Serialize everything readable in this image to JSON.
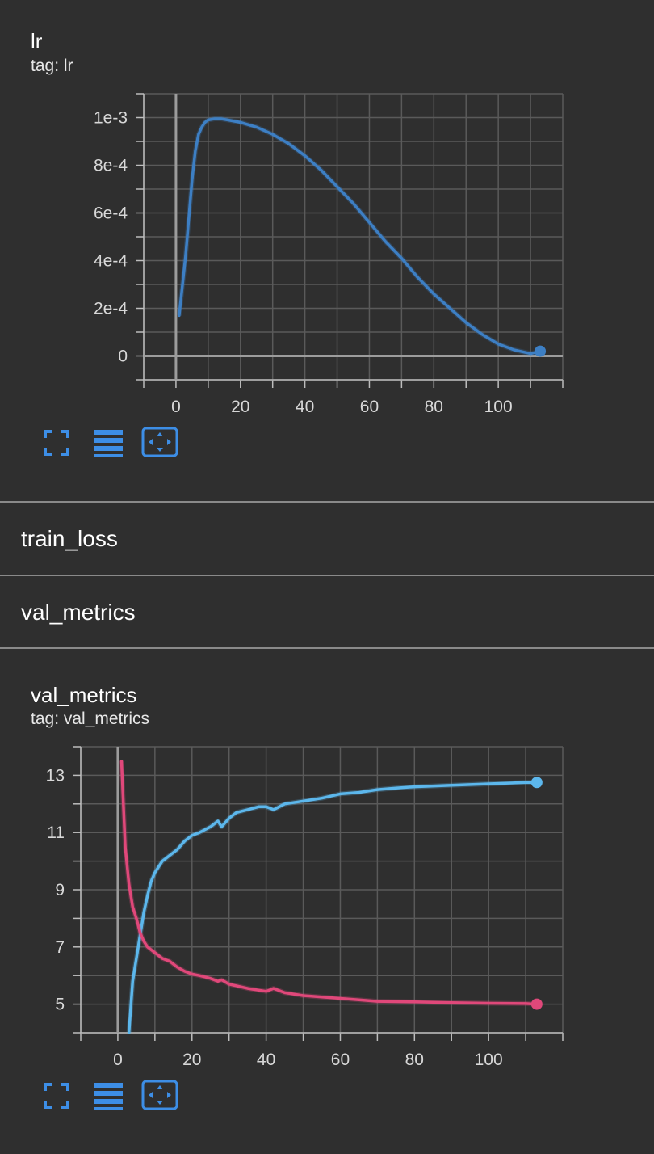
{
  "cards": [
    {
      "title": "lr",
      "tag": "tag: lr"
    },
    {
      "title": "val_metrics",
      "tag": "tag: val_metrics"
    }
  ],
  "sections": [
    "train_loss",
    "val_metrics"
  ],
  "toolbar": {
    "icons": [
      "fullscreen-icon",
      "legend-list-icon",
      "fit-domain-icon"
    ]
  },
  "colors": {
    "background": "#2f2f2f",
    "accent": "#3d8ee6",
    "lr_series": "#3d7fc4",
    "blue_series": "#5cb7ec",
    "pink_series": "#e0487a"
  },
  "chart_data": [
    {
      "type": "line",
      "title": "lr",
      "xlabel": "",
      "ylabel": "",
      "xlim": [
        -10,
        120
      ],
      "ylim": [
        -0.0001,
        0.0011
      ],
      "x_ticks": [
        0,
        20,
        40,
        60,
        80,
        100
      ],
      "x_tick_labels": [
        "0",
        "20",
        "40",
        "60",
        "80",
        "100"
      ],
      "y_ticks": [
        0,
        0.0002,
        0.0004,
        0.0006,
        0.0008,
        0.001
      ],
      "y_tick_labels": [
        "0",
        "2e-4",
        "4e-4",
        "6e-4",
        "8e-4",
        "1e-3"
      ],
      "grid": true,
      "series": [
        {
          "x": [
            1,
            3,
            5,
            6,
            7,
            8,
            9,
            10,
            12,
            14,
            16,
            20,
            25,
            30,
            35,
            40,
            45,
            50,
            55,
            60,
            65,
            70,
            75,
            80,
            85,
            90,
            95,
            100,
            105,
            110,
            113
          ],
          "y": [
            0.00017,
            0.00042,
            0.00074,
            0.00086,
            0.00093,
            0.00096,
            0.00098,
            0.00099,
            0.000995,
            0.000995,
            0.00099,
            0.00098,
            0.00096,
            0.00093,
            0.00089,
            0.00084,
            0.00078,
            0.00071,
            0.00064,
            0.00056,
            0.00048,
            0.00041,
            0.00033,
            0.00026,
            0.0002,
            0.00014,
            9e-05,
            5e-05,
            2.5e-05,
            1e-05,
            2e-05
          ]
        }
      ]
    },
    {
      "type": "line",
      "title": "val_metrics",
      "xlabel": "",
      "ylabel": "",
      "xlim": [
        -10,
        120
      ],
      "ylim": [
        4,
        14
      ],
      "x_ticks": [
        0,
        20,
        40,
        60,
        80,
        100
      ],
      "x_tick_labels": [
        "0",
        "20",
        "40",
        "60",
        "80",
        "100"
      ],
      "y_ticks": [
        5,
        7,
        9,
        11,
        13
      ],
      "y_tick_labels": [
        "5",
        "7",
        "9",
        "11",
        "13"
      ],
      "grid": true,
      "series": [
        {
          "x": [
            3,
            4,
            5,
            6,
            7,
            8,
            9,
            10,
            12,
            14,
            16,
            18,
            20,
            22,
            25,
            27,
            28,
            30,
            32,
            35,
            38,
            40,
            42,
            45,
            50,
            55,
            60,
            65,
            70,
            75,
            80,
            90,
            100,
            110,
            113
          ],
          "y": [
            4.0,
            5.8,
            6.6,
            7.4,
            8.2,
            8.8,
            9.3,
            9.6,
            10.0,
            10.2,
            10.4,
            10.7,
            10.9,
            11.0,
            11.2,
            11.4,
            11.2,
            11.5,
            11.7,
            11.8,
            11.9,
            11.9,
            11.8,
            12.0,
            12.1,
            12.2,
            12.35,
            12.4,
            12.5,
            12.55,
            12.6,
            12.65,
            12.7,
            12.75,
            12.75
          ]
        },
        {
          "x": [
            1,
            2,
            3,
            4,
            5,
            6,
            7,
            8,
            10,
            12,
            14,
            16,
            18,
            20,
            22,
            25,
            27,
            28,
            30,
            35,
            40,
            42,
            45,
            50,
            55,
            60,
            65,
            70,
            80,
            90,
            100,
            110,
            113
          ],
          "y": [
            13.5,
            10.5,
            9.2,
            8.4,
            8.0,
            7.5,
            7.2,
            7.0,
            6.8,
            6.6,
            6.5,
            6.3,
            6.15,
            6.05,
            6.0,
            5.9,
            5.8,
            5.85,
            5.7,
            5.55,
            5.45,
            5.55,
            5.4,
            5.3,
            5.25,
            5.2,
            5.15,
            5.1,
            5.08,
            5.05,
            5.03,
            5.02,
            5.0
          ]
        }
      ]
    }
  ]
}
